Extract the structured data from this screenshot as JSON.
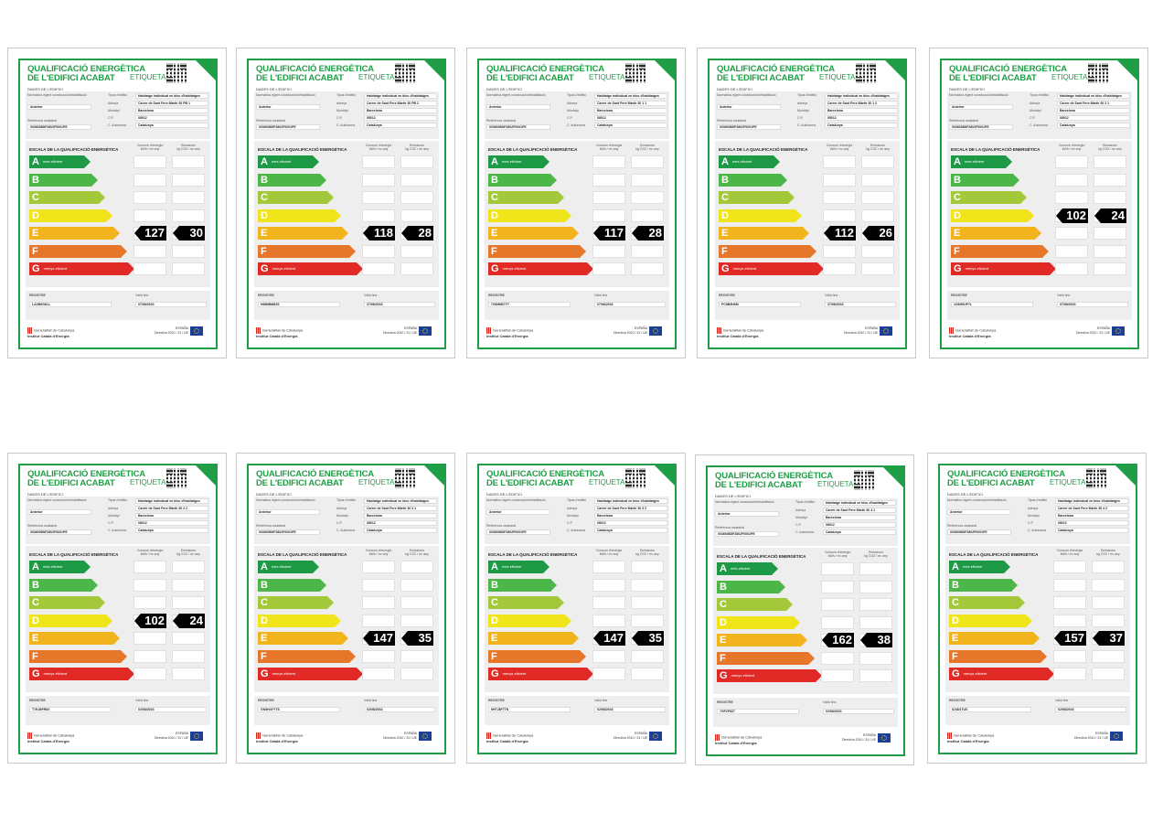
{
  "labels": [
    {
      "title1": "QUALIFICACIÓ ENERGÈTICA",
      "title2": "DE L'EDIFICI ACABAT",
      "etiqueta": "ETIQUETA",
      "dades": "DADES DE L'EDIFICI",
      "normativa": "Normativa vigent construcció/rehabilitació",
      "normativa_val": "Anterior",
      "tipus_l": "Tipus d'edifici",
      "tipus": "Habitatge individual en bloc d'habitatges",
      "adreca_l": "Adreça",
      "adreca": "Carrer de Sant Pere Màrtir 30 PB 1",
      "municipi_l": "Municipi",
      "municipi": "Barcelona",
      "cp_l": "C.P.",
      "cp": "08012",
      "ref_l": "Referència cadastral",
      "ref": "0036008DF2802F0001PE",
      "ca_l": "C. Autònoma",
      "ca": "Catalunya",
      "escala": "ESCALA DE LA QUALIFICACIÓ ENERGÈTICA",
      "consum_l": "Consum d'energia",
      "consum_u": "kWh / m² any",
      "emis_l": "Emissions",
      "emis_u": "kg CO2 / m² any",
      "mes": "més eficient",
      "menys": "menys eficient",
      "registre_l": "REGISTRE",
      "registre": "LA2B9G6LL",
      "valid_l": "Vàlid fins",
      "valid": "07/08/2033",
      "gen1": "Generalitat de Catalunya",
      "gen2": "Institut Català d'Energia",
      "espanya": "ESPAÑA",
      "directiva": "Directiva 2010 / 31 / UE",
      "consum": "127",
      "emis": "30",
      "letter_idx": 4
    },
    {
      "title1": "QUALIFICACIÓ ENERGÈTICA",
      "title2": "DE L'EDIFICI ACABAT",
      "etiqueta": "ETIQUETA",
      "dades": "DADES DE L'EDIFICI",
      "normativa": "Normativa vigent construcció/rehabilitació",
      "normativa_val": "Anterior",
      "tipus_l": "Tipus d'edifici",
      "tipus": "Habitatge individual en bloc d'habitatges",
      "adreca_l": "Adreça",
      "adreca": "Carrer de Sant Pere Màrtir 30 PB 2",
      "municipi_l": "Municipi",
      "municipi": "Barcelona",
      "cp_l": "C.P.",
      "cp": "08012",
      "ref_l": "Referència cadastral",
      "ref": "0036008DF2802F0001PE",
      "ca_l": "C. Autònoma",
      "ca": "Catalunya",
      "escala": "ESCALA DE LA QUALIFICACIÓ ENERGÈTICA",
      "consum_l": "Consum d'energia",
      "consum_u": "kWh / m² any",
      "emis_l": "Emissions",
      "emis_u": "kg CO2 / m² any",
      "mes": "més eficient",
      "menys": "menys eficient",
      "registre_l": "REGISTRE",
      "registre": "H6B9B6M2S",
      "valid_l": "Vàlid fins",
      "valid": "07/08/2033",
      "gen1": "Generalitat de Catalunya",
      "gen2": "Institut Català d'Energia",
      "espanya": "ESPAÑA",
      "directiva": "Directiva 2010 / 31 / UE",
      "consum": "118",
      "emis": "28",
      "letter_idx": 4
    },
    {
      "title1": "QUALIFICACIÓ ENERGÈTICA",
      "title2": "DE L'EDIFICI ACABAT",
      "etiqueta": "ETIQUETA",
      "dades": "DADES DE L'EDIFICI",
      "normativa": "Normativa vigent construcció/rehabilitació",
      "normativa_val": "Anterior",
      "tipus_l": "Tipus d'edifici",
      "tipus": "Habitatge individual en bloc d'habitatges",
      "adreca_l": "Adreça",
      "adreca": "Carrer de Sant Pere Màrtir 30 1 1",
      "municipi_l": "Municipi",
      "municipi": "Barcelona",
      "cp_l": "C.P.",
      "cp": "08012",
      "ref_l": "Referència cadastral",
      "ref": "0036008DF2802F0001PE",
      "ca_l": "C. Autònoma",
      "ca": "Catalunya",
      "escala": "ESCALA DE LA QUALIFICACIÓ ENERGÈTICA",
      "consum_l": "Consum d'energia",
      "consum_u": "kWh / m² any",
      "emis_l": "Emissions",
      "emis_u": "kg CO2 / m² any",
      "mes": "més eficient",
      "menys": "menys eficient",
      "registre_l": "REGISTRE",
      "registre": "7G8H6B7YT",
      "valid_l": "Vàlid fins",
      "valid": "07/08/2033",
      "gen1": "Generalitat de Catalunya",
      "gen2": "Institut Català d'Energia",
      "espanya": "ESPAÑA",
      "directiva": "Directiva 2010 / 31 / UE",
      "consum": "117",
      "emis": "28",
      "letter_idx": 4
    },
    {
      "title1": "QUALIFICACIÓ ENERGÈTICA",
      "title2": "DE L'EDIFICI ACABAT",
      "etiqueta": "ETIQUETA",
      "dades": "DADES DE L'EDIFICI",
      "normativa": "Normativa vigent construcció/rehabilitació",
      "normativa_val": "Anterior",
      "tipus_l": "Tipus d'edifici",
      "tipus": "Habitatge individual en bloc d'habitatges",
      "adreca_l": "Adreça",
      "adreca": "Carrer de Sant Pere Màrtir 30 1 2",
      "municipi_l": "Municipi",
      "municipi": "Barcelona",
      "cp_l": "C.P.",
      "cp": "08012",
      "ref_l": "Referència cadastral",
      "ref": "0036008DF2802F0001PE",
      "ca_l": "C. Autònoma",
      "ca": "Catalunya",
      "escala": "ESCALA DE LA QUALIFICACIÓ ENERGÈTICA",
      "consum_l": "Consum d'energia",
      "consum_u": "kWh / m² any",
      "emis_l": "Emissions",
      "emis_u": "kg CO2 / m² any",
      "mes": "més eficient",
      "menys": "menys eficient",
      "registre_l": "REGISTRE",
      "registre": "PC6B9H6M",
      "valid_l": "Vàlid fins",
      "valid": "07/08/2033",
      "gen1": "Generalitat de Catalunya",
      "gen2": "Institut Català d'Energia",
      "espanya": "ESPAÑA",
      "directiva": "Directiva 2010 / 31 / UE",
      "consum": "112",
      "emis": "26",
      "letter_idx": 4
    },
    {
      "title1": "QUALIFICACIÓ ENERGÈTICA",
      "title2": "DE L'EDIFICI ACABAT",
      "etiqueta": "ETIQUETA",
      "dades": "DADES DE L'EDIFICI",
      "normativa": "Normativa vigent construcció/rehabilitació",
      "normativa_val": "Anterior",
      "tipus_l": "Tipus d'edifici",
      "tipus": "Habitatge individual en bloc d'habitatges",
      "adreca_l": "Adreça",
      "adreca": "Carrer de Sant Pere Màrtir 30 2 1",
      "municipi_l": "Municipi",
      "municipi": "Barcelona",
      "cp_l": "C.P.",
      "cp": "08012",
      "ref_l": "Referència cadastral",
      "ref": "0036008DF2802F0001PE",
      "ca_l": "C. Autònoma",
      "ca": "Catalunya",
      "escala": "ESCALA DE LA QUALIFICACIÓ ENERGÈTICA",
      "consum_l": "Consum d'energia",
      "consum_u": "kWh / m² any",
      "emis_l": "Emissions",
      "emis_u": "kg CO2 / m² any",
      "mes": "més eficient",
      "menys": "menys eficient",
      "registre_l": "REGISTRE",
      "registre": "1G6H5UP7L",
      "valid_l": "Vàlid fins",
      "valid": "07/08/2033",
      "gen1": "Generalitat de Catalunya",
      "gen2": "Institut Català d'Energia",
      "espanya": "ESPAÑA",
      "directiva": "Directiva 2010 / 31 / UE",
      "consum": "102",
      "emis": "24",
      "letter_idx": 3
    },
    {
      "title1": "QUALIFICACIÓ ENERGÈTICA",
      "title2": "DE L'EDIFICI ACABAT",
      "etiqueta": "ETIQUETA",
      "dades": "DADES DE L'EDIFICI",
      "normativa": "Normativa vigent construcció/rehabilitació",
      "normativa_val": "Anterior",
      "tipus_l": "Tipus d'edifici",
      "tipus": "Habitatge individual en bloc d'habitatges",
      "adreca_l": "Adreça",
      "adreca": "Carrer de Sant Pere Màrtir 30 2 2",
      "municipi_l": "Municipi",
      "municipi": "Barcelona",
      "cp_l": "C.P.",
      "cp": "08012",
      "ref_l": "Referència cadastral",
      "ref": "0036008DF2802F0001PE",
      "ca_l": "C. Autònoma",
      "ca": "Catalunya",
      "escala": "ESCALA DE LA QUALIFICACIÓ ENERGÈTICA",
      "consum_l": "Consum d'energia",
      "consum_u": "kWh / m² any",
      "emis_l": "Emissions",
      "emis_u": "kg CO2 / m² any",
      "mes": "més eficient",
      "menys": "menys eficient",
      "registre_l": "REGISTRE",
      "registre": "T7K26FR6X",
      "valid_l": "Vàlid fins",
      "valid": "02/08/2033",
      "gen1": "Generalitat de Catalunya",
      "gen2": "Institut Català d'Energia",
      "espanya": "ESPAÑA",
      "directiva": "Directiva 2010 / 31 / UE",
      "consum": "102",
      "emis": "24",
      "letter_idx": 3
    },
    {
      "title1": "QUALIFICACIÓ ENERGÈTICA",
      "title2": "DE L'EDIFICI ACABAT",
      "etiqueta": "ETIQUETA",
      "dades": "DADES DE L'EDIFICI",
      "normativa": "Normativa vigent construcció/rehabilitació",
      "normativa_val": "Anterior",
      "tipus_l": "Tipus d'edifici",
      "tipus": "Habitatge individual en bloc d'habitatges",
      "adreca_l": "Adreça",
      "adreca": "Carrer de Sant Pere Màrtir 30 3 1",
      "municipi_l": "Municipi",
      "municipi": "Barcelona",
      "cp_l": "C.P.",
      "cp": "08012",
      "ref_l": "Referència cadastral",
      "ref": "0036008DF2802F0001PE",
      "ca_l": "C. Autònoma",
      "ca": "Catalunya",
      "escala": "ESCALA DE LA QUALIFICACIÓ ENERGÈTICA",
      "consum_l": "Consum d'energia",
      "consum_u": "kWh / m² any",
      "emis_l": "Emissions",
      "emis_u": "kg CO2 / m² any",
      "mes": "més eficient",
      "menys": "menys eficient",
      "registre_l": "REGISTRE",
      "registre": "GK6H4YYTS",
      "valid_l": "Vàlid fins",
      "valid": "02/08/2033",
      "gen1": "Generalitat de Catalunya",
      "gen2": "Institut Català d'Energia",
      "espanya": "ESPAÑA",
      "directiva": "Directiva 2010 / 31 / UE",
      "consum": "147",
      "emis": "35",
      "letter_idx": 4
    },
    {
      "title1": "QUALIFICACIÓ ENERGÈTICA",
      "title2": "DE L'EDIFICI ACABAT",
      "etiqueta": "ETIQUETA",
      "dades": "DADES DE L'EDIFICI",
      "normativa": "Normativa vigent construcció/rehabilitació",
      "normativa_val": "Anterior",
      "tipus_l": "Tipus d'edifici",
      "tipus": "Habitatge individual en bloc d'habitatges",
      "adreca_l": "Adreça",
      "adreca": "Carrer de Sant Pere Màrtir 30 3 2",
      "municipi_l": "Municipi",
      "municipi": "Barcelona",
      "cp_l": "C.P.",
      "cp": "08012",
      "ref_l": "Referència cadastral",
      "ref": "0036008DF2802F0001PE",
      "ca_l": "C. Autònoma",
      "ca": "Catalunya",
      "escala": "ESCALA DE LA QUALIFICACIÓ ENERGÈTICA",
      "consum_l": "Consum d'energia",
      "consum_u": "kWh / m² any",
      "emis_l": "Emissions",
      "emis_u": "kg CO2 / m² any",
      "mes": "més eficient",
      "menys": "menys eficient",
      "registre_l": "REGISTRE",
      "registre": "9HTJ8F7TN",
      "valid_l": "Vàlid fins",
      "valid": "02/08/2033",
      "gen1": "Generalitat de Catalunya",
      "gen2": "Institut Català d'Energia",
      "espanya": "ESPAÑA",
      "directiva": "Directiva 2010 / 31 / UE",
      "consum": "147",
      "emis": "35",
      "letter_idx": 4
    },
    {
      "title1": "QUALIFICACIÓ ENERGÈTICA",
      "title2": "DE L'EDIFICI ACABAT",
      "etiqueta": "ETIQUETA",
      "dades": "DADES DE L'EDIFICI",
      "normativa": "Normativa vigent construcció/rehabilitació",
      "normativa_val": "Anterior",
      "tipus_l": "Tipus d'edifici",
      "tipus": "Habitatge individual en bloc d'habitatges",
      "adreca_l": "Adreça",
      "adreca": "Carrer de Sant Pere Màrtir 30 4 1",
      "municipi_l": "Municipi",
      "municipi": "Barcelona",
      "cp_l": "C.P.",
      "cp": "08012",
      "ref_l": "Referència cadastral",
      "ref": "0036008DF2802F0001PE",
      "ca_l": "C. Autònoma",
      "ca": "Catalunya",
      "escala": "ESCALA DE LA QUALIFICACIÓ ENERGÈTICA",
      "consum_l": "Consum d'energia",
      "consum_u": "kWh / m² any",
      "emis_l": "Emissions",
      "emis_u": "kg CO2 / m² any",
      "mes": "més eficient",
      "menys": "menys eficient",
      "registre_l": "REGISTRE",
      "registre": "7GF2F8Z7",
      "valid_l": "Vàlid fins",
      "valid": "02/08/2033",
      "gen1": "Generalitat de Catalunya",
      "gen2": "Institut Català d'Energia",
      "espanya": "ESPAÑA",
      "directiva": "Directiva 2010 / 31 / UE",
      "consum": "162",
      "emis": "38",
      "letter_idx": 4
    },
    {
      "title1": "QUALIFICACIÓ ENERGÈTICA",
      "title2": "DE L'EDIFICI ACABAT",
      "etiqueta": "ETIQUETA",
      "dades": "DADES DE L'EDIFICI",
      "normativa": "Normativa vigent construcció/rehabilitació",
      "normativa_val": "Anterior",
      "tipus_l": "Tipus d'edifici",
      "tipus": "Habitatge individual en bloc d'habitatges",
      "adreca_l": "Adreça",
      "adreca": "Carrer de Sant Pere Màrtir 30 4 2",
      "municipi_l": "Municipi",
      "municipi": "Barcelona",
      "cp_l": "C.P.",
      "cp": "08012",
      "ref_l": "Referència cadastral",
      "ref": "0036008DF2802F0001PE",
      "ca_l": "C. Autònoma",
      "ca": "Catalunya",
      "escala": "ESCALA DE LA QUALIFICACIÓ ENERGÈTICA",
      "consum_l": "Consum d'energia",
      "consum_u": "kWh / m² any",
      "emis_l": "Emissions",
      "emis_u": "kg CO2 / m² any",
      "mes": "més eficient",
      "menys": "menys eficient",
      "registre_l": "REGISTRE",
      "registre": "8J4D4TUS",
      "valid_l": "Vàlid fins",
      "valid": "02/08/2033",
      "gen1": "Generalitat de Catalunya",
      "gen2": "Institut Català d'Energia",
      "espanya": "ESPAÑA",
      "directiva": "Directiva 2010 / 31 / UE",
      "consum": "157",
      "emis": "37",
      "letter_idx": 4
    }
  ],
  "scale": [
    {
      "letter": "A",
      "color": "#1e9a46"
    },
    {
      "letter": "B",
      "color": "#4cb748"
    },
    {
      "letter": "C",
      "color": "#a3c93a"
    },
    {
      "letter": "D",
      "color": "#f0e51a"
    },
    {
      "letter": "E",
      "color": "#f2b41d"
    },
    {
      "letter": "F",
      "color": "#e6762a"
    },
    {
      "letter": "G",
      "color": "#e12a25"
    }
  ],
  "colors": {
    "brand_green": "#1f9e47"
  }
}
